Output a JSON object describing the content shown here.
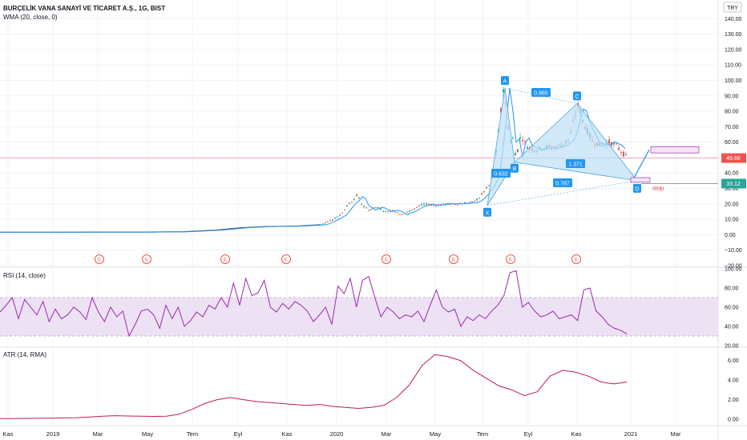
{
  "header": {
    "symbol": "BURÇELİK VANA SANAYİ VE TİCARET A.Ş., 1G, BIST",
    "indicator": "WMA (20, close, 0)",
    "currency": "TRY"
  },
  "panes": {
    "rsi_label": "RSI (14, close)",
    "atr_label": "ATR (14, RMA)"
  },
  "colors": {
    "up": "#26a69a",
    "down": "#ef5350",
    "wma": "#2196f3",
    "pattern_fill": "#bde0f6",
    "pattern_line": "#4fa8e0",
    "label_box": "#2196f3",
    "price_line": "#f48fb1",
    "rsi_line": "#9c27b0",
    "rsi_band": "#ede2f4",
    "atr_line": "#c2185b",
    "stop_line": "#787b86",
    "stop_text": "#e53935",
    "current_price_bg": "#ef5350",
    "stop_price_bg": "#26a69a"
  },
  "chart_data": [
    {
      "type": "candlestick",
      "title": "BURÇELİK VANA SANAYİ VE TİCARET A.Ş., 1G, BIST",
      "ylim": [
        -20,
        150
      ],
      "yticks": [
        -20,
        -10,
        0,
        10,
        20,
        30,
        40,
        50,
        60,
        70,
        80,
        90,
        100,
        110,
        120,
        130,
        140
      ],
      "ytick_labels": [
        "−20.00",
        "−10.00",
        "0.00",
        "10.00",
        "20.00",
        "30.00",
        "40.00",
        "50.00",
        "60.00",
        "70.00",
        "80.00",
        "90.00",
        "100.00",
        "110.00",
        "120.00",
        "130.00",
        "140.00"
      ],
      "xticks": [
        "Kas",
        "2019",
        "Mar",
        "May",
        "Tem",
        "Eyl",
        "Kas",
        "2020",
        "Mar",
        "May",
        "Tem",
        "Eyl",
        "Kas",
        "2021",
        "Mar"
      ],
      "price_path": [
        [
          0,
          1.6
        ],
        [
          60,
          1.6
        ],
        [
          120,
          1.7
        ],
        [
          180,
          1.7
        ],
        [
          230,
          2.0
        ],
        [
          270,
          3.0
        ],
        [
          300,
          4.5
        ],
        [
          330,
          5.3
        ],
        [
          370,
          5.6
        ],
        [
          400,
          6.5
        ],
        [
          415,
          10
        ],
        [
          425,
          13
        ],
        [
          435,
          20
        ],
        [
          440,
          22
        ],
        [
          446,
          26
        ],
        [
          452,
          19
        ],
        [
          460,
          16
        ],
        [
          470,
          18
        ],
        [
          480,
          15
        ],
        [
          490,
          16
        ],
        [
          500,
          13
        ],
        [
          510,
          15
        ],
        [
          520,
          18
        ],
        [
          530,
          20
        ],
        [
          540,
          19
        ],
        [
          555,
          20
        ],
        [
          570,
          20
        ],
        [
          590,
          21
        ],
        [
          598,
          24
        ],
        [
          604,
          28
        ],
        [
          610,
          32
        ],
        [
          616,
          40
        ],
        [
          620,
          58
        ],
        [
          624,
          75
        ],
        [
          628,
          95
        ],
        [
          632,
          80
        ],
        [
          636,
          60
        ],
        [
          640,
          62
        ],
        [
          644,
          50
        ],
        [
          650,
          65
        ],
        [
          656,
          58
        ],
        [
          662,
          56
        ],
        [
          670,
          55
        ],
        [
          680,
          57
        ],
        [
          690,
          56
        ],
        [
          700,
          58
        ],
        [
          710,
          62
        ],
        [
          718,
          78
        ],
        [
          722,
          85
        ],
        [
          726,
          75
        ],
        [
          732,
          68
        ],
        [
          740,
          60
        ],
        [
          750,
          58
        ],
        [
          760,
          60
        ],
        [
          768,
          58
        ],
        [
          775,
          54
        ],
        [
          782,
          50
        ]
      ],
      "current_price": "49.66",
      "stop_price": "33.12",
      "earnings_markers": [
        "E",
        "E",
        "E",
        "E",
        "E",
        "E",
        "E",
        "E"
      ],
      "harmonic_pattern": {
        "points": [
          {
            "name": "X",
            "value": 19
          },
          {
            "name": "A",
            "value": 95
          },
          {
            "name": "B",
            "value": 47
          },
          {
            "name": "C",
            "value": 85
          },
          {
            "name": "D",
            "value": 35
          }
        ],
        "ratios": [
          "0.632",
          "0.865",
          "1.371",
          "0.787"
        ],
        "stop_label": "stop"
      }
    },
    {
      "type": "line",
      "title": "RSI (14, close)",
      "ylim": [
        20,
        100
      ],
      "yticks": [
        20,
        40,
        60,
        80,
        100
      ],
      "ytick_labels": [
        "20.00",
        "40.00",
        "60.00",
        "80.00",
        "100.00"
      ],
      "band": [
        30,
        70
      ],
      "series": [
        {
          "values": [
            55,
            62,
            70,
            48,
            68,
            60,
            52,
            66,
            45,
            58,
            48,
            52,
            60,
            55,
            47,
            70,
            55,
            45,
            60,
            50,
            56,
            30,
            42,
            56,
            58,
            52,
            38,
            62,
            48,
            60,
            40,
            46,
            55,
            50,
            62,
            58,
            70,
            60,
            85,
            62,
            90,
            72,
            75,
            88,
            60,
            55,
            64,
            58,
            66,
            62,
            56,
            45,
            52,
            60,
            42,
            82,
            74,
            90,
            60,
            88,
            92,
            70,
            50,
            60,
            55,
            48,
            52,
            50,
            56,
            45,
            62,
            78,
            60,
            55,
            58,
            40,
            50,
            46,
            52,
            48,
            56,
            62,
            72,
            96,
            98,
            60,
            65,
            56,
            50,
            52,
            56,
            48,
            50,
            52,
            46,
            78,
            80,
            56,
            50,
            42,
            38,
            36,
            32
          ]
        }
      ]
    },
    {
      "type": "line",
      "title": "ATR (14, RMA)",
      "ylim": [
        -0.5,
        7.2
      ],
      "yticks": [
        0,
        2,
        4,
        6
      ],
      "ytick_labels": [
        "0.00",
        "2.00",
        "4.00",
        "6.00"
      ],
      "series": [
        {
          "values": [
            0.05,
            0.06,
            0.07,
            0.08,
            0.1,
            0.12,
            0.15,
            0.22,
            0.3,
            0.35,
            0.32,
            0.3,
            0.28,
            0.3,
            0.5,
            1.0,
            1.6,
            2.0,
            2.2,
            2.0,
            1.8,
            1.7,
            1.6,
            1.5,
            1.4,
            1.5,
            1.3,
            1.2,
            1.1,
            1.2,
            1.4,
            2.2,
            3.5,
            5.5,
            6.6,
            6.4,
            6.0,
            5.0,
            4.2,
            3.4,
            3.0,
            2.4,
            2.8,
            4.4,
            5.0,
            4.8,
            4.4,
            3.8,
            3.6,
            3.8
          ]
        }
      ]
    }
  ]
}
